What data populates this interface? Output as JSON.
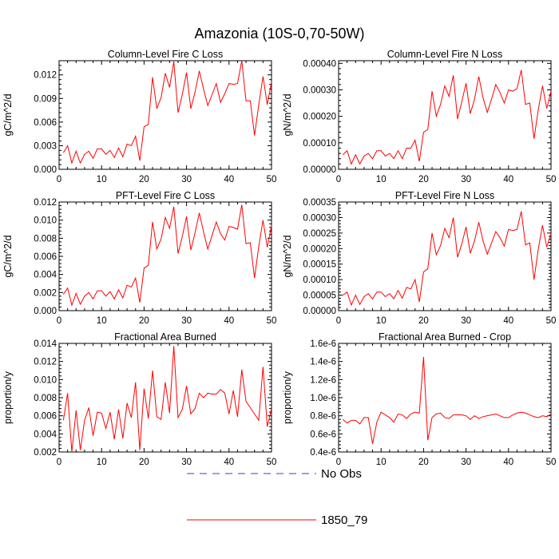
{
  "figure": {
    "title": "Amazonia (10S-0,70-50W)",
    "legend": [
      {
        "label": "No Obs",
        "color": "#3b3bcc",
        "style": "dashed"
      },
      {
        "label": "1850_79",
        "color": "#ff0000",
        "style": "solid"
      }
    ]
  },
  "chart_data": [
    {
      "type": "line",
      "title": "Column-Level Fire C Loss",
      "ylabel": "gC/m^2/d",
      "xlim": [
        0,
        50
      ],
      "ylim": [
        0,
        0.0138
      ],
      "xticks": [
        0,
        10,
        20,
        30,
        40,
        50
      ],
      "yticks": [
        "0.000",
        "0.003",
        "0.006",
        "0.009",
        "0.012"
      ],
      "ytick_values": [
        0,
        0.003,
        0.006,
        0.009,
        0.012
      ],
      "series": [
        {
          "name": "1850_79",
          "color": "#ff0000",
          "values": [
            0.0021,
            0.003,
            0.0008,
            0.0023,
            0.0008,
            0.0019,
            0.0023,
            0.0014,
            0.0026,
            0.0026,
            0.0019,
            0.0024,
            0.0015,
            0.0027,
            0.0016,
            0.0032,
            0.003,
            0.0042,
            0.0011,
            0.0054,
            0.0057,
            0.0117,
            0.0077,
            0.0091,
            0.0122,
            0.0104,
            0.0137,
            0.0072,
            0.0095,
            0.0123,
            0.0077,
            0.0098,
            0.0125,
            0.0102,
            0.0081,
            0.0095,
            0.0109,
            0.0085,
            0.0096,
            0.0109,
            0.0108,
            0.0109,
            0.0138,
            0.0087,
            0.0087,
            0.0043,
            0.0082,
            0.0118,
            0.0082,
            0.0111
          ]
        }
      ]
    },
    {
      "type": "line",
      "title": "Column-Level Fire N Loss",
      "ylabel": "gN/m^2/d",
      "xlim": [
        0,
        50
      ],
      "ylim": [
        0,
        0.00041
      ],
      "xticks": [
        0,
        10,
        20,
        30,
        40,
        50
      ],
      "yticks": [
        "0.00000",
        "0.00010",
        "0.00020",
        "0.00030",
        "0.00040"
      ],
      "ytick_values": [
        0,
        0.0001,
        0.0002,
        0.0003,
        0.0004
      ],
      "series": [
        {
          "name": "1850_79",
          "color": "#ff0000",
          "values": [
            5.5e-05,
            7e-05,
            2e-05,
            5.5e-05,
            2e-05,
            5e-05,
            6e-05,
            4e-05,
            7e-05,
            7e-05,
            5e-05,
            6e-05,
            4e-05,
            7e-05,
            4e-05,
            8e-05,
            8e-05,
            0.00011,
            3e-05,
            0.00014,
            0.00015,
            0.000295,
            0.0002,
            0.000245,
            0.000315,
            0.000275,
            0.000355,
            0.00019,
            0.000255,
            0.000325,
            0.00021,
            0.000265,
            0.00035,
            0.00027,
            0.000215,
            0.000265,
            0.00032,
            0.00029,
            0.00025,
            0.0003,
            0.000295,
            0.000305,
            0.000375,
            0.000245,
            0.00025,
            0.000115,
            0.000225,
            0.000315,
            0.00023,
            0.000295
          ]
        }
      ]
    },
    {
      "type": "line",
      "title": "PFT-Level Fire C Loss",
      "ylabel": "gC/m^2/d",
      "xlim": [
        0,
        50
      ],
      "ylim": [
        0,
        0.012
      ],
      "xticks": [
        0,
        10,
        20,
        30,
        40,
        50
      ],
      "yticks": [
        "0.000",
        "0.002",
        "0.004",
        "0.006",
        "0.008",
        "0.010",
        "0.012"
      ],
      "ytick_values": [
        0,
        0.002,
        0.004,
        0.006,
        0.008,
        0.01,
        0.012
      ],
      "series": [
        {
          "name": "1850_79",
          "color": "#ff0000",
          "values": [
            0.0018,
            0.0025,
            0.0006,
            0.0019,
            0.0007,
            0.0016,
            0.002,
            0.0013,
            0.0022,
            0.0022,
            0.0016,
            0.0021,
            0.0013,
            0.0023,
            0.0014,
            0.0028,
            0.0026,
            0.0036,
            0.0009,
            0.0047,
            0.005,
            0.0098,
            0.0068,
            0.0079,
            0.0103,
            0.0091,
            0.0115,
            0.0063,
            0.0082,
            0.0104,
            0.0067,
            0.0086,
            0.0108,
            0.0087,
            0.0068,
            0.0083,
            0.0098,
            0.0085,
            0.0078,
            0.0093,
            0.0092,
            0.009,
            0.0117,
            0.0074,
            0.0075,
            0.0036,
            0.0071,
            0.01,
            0.007,
            0.0094
          ]
        }
      ]
    },
    {
      "type": "line",
      "title": "PFT-Level Fire N Loss",
      "ylabel": "gN/m^2/d",
      "xlim": [
        0,
        50
      ],
      "ylim": [
        0,
        0.00035
      ],
      "xticks": [
        0,
        10,
        20,
        30,
        40,
        50
      ],
      "yticks": [
        "0.00000",
        "0.00005",
        "0.00010",
        "0.00015",
        "0.00020",
        "0.00025",
        "0.00030",
        "0.00035"
      ],
      "ytick_values": [
        0,
        5e-05,
        0.0001,
        0.00015,
        0.0002,
        0.00025,
        0.0003,
        0.00035
      ],
      "series": [
        {
          "name": "1850_79",
          "color": "#ff0000",
          "values": [
            5e-05,
            6e-05,
            1.8e-05,
            5e-05,
            2e-05,
            4.5e-05,
            5.5e-05,
            3.8e-05,
            6e-05,
            6e-05,
            4.5e-05,
            5.5e-05,
            3.8e-05,
            6.5e-05,
            4e-05,
            7.5e-05,
            7e-05,
            0.0001,
            2.8e-05,
            0.000125,
            0.000135,
            0.00025,
            0.00018,
            0.00021,
            0.000265,
            0.000235,
            0.0003,
            0.000172,
            0.000215,
            0.00027,
            0.000185,
            0.000225,
            0.000285,
            0.000225,
            0.000182,
            0.000218,
            0.000255,
            0.000235,
            0.000208,
            0.000262,
            0.000258,
            0.000262,
            0.00032,
            0.000212,
            0.000218,
            0.0001,
            0.000198,
            0.000275,
            0.000205,
            0.000248
          ]
        }
      ]
    },
    {
      "type": "line",
      "title": "Fractional Area Burned",
      "ylabel": "proportion/y",
      "xlim": [
        0,
        50
      ],
      "ylim": [
        0.002,
        0.014
      ],
      "xticks": [
        0,
        10,
        20,
        30,
        40,
        50
      ],
      "yticks": [
        "0.002",
        "0.004",
        "0.006",
        "0.008",
        "0.010",
        "0.012",
        "0.014"
      ],
      "ytick_values": [
        0.002,
        0.004,
        0.006,
        0.008,
        0.01,
        0.012,
        0.014
      ],
      "series": [
        {
          "name": "1850_79",
          "color": "#ff0000",
          "values": [
            0.0055,
            0.0085,
            0.002,
            0.0066,
            0.0022,
            0.0055,
            0.0069,
            0.0038,
            0.0064,
            0.0063,
            0.0046,
            0.0064,
            0.0034,
            0.0067,
            0.0035,
            0.0074,
            0.0058,
            0.0097,
            0.0022,
            0.009,
            0.0057,
            0.011,
            0.0059,
            0.0056,
            0.0097,
            0.0063,
            0.0137,
            0.0058,
            0.0067,
            0.0093,
            0.0062,
            0.0068,
            0.0085,
            0.008,
            0.0085,
            0.0084,
            0.0084,
            0.0089,
            0.0085,
            0.0062,
            0.0088,
            0.0059,
            0.0111,
            0.0076,
            0.0069,
            0.0062,
            0.0055,
            0.0114,
            0.0048,
            0.0068
          ]
        }
      ]
    },
    {
      "type": "line",
      "title": "Fractional Area Burned - Crop",
      "ylabel": "proportion/y",
      "xlim": [
        0,
        50
      ],
      "ylim": [
        4e-07,
        1.6e-06
      ],
      "xticks": [
        0,
        10,
        20,
        30,
        40,
        50
      ],
      "yticks": [
        "0.4e-6",
        "0.6e-6",
        "0.8e-6",
        "1.0e-6",
        "1.2e-6",
        "1.4e-6",
        "1.6e-6"
      ],
      "ytick_values": [
        4e-07,
        6e-07,
        8e-07,
        1e-06,
        1.2e-06,
        1.4e-06,
        1.6e-06
      ],
      "series": [
        {
          "name": "1850_79",
          "color": "#ff0000",
          "values": [
            7.6e-07,
            7.2e-07,
            7.5e-07,
            7.5e-07,
            7.1e-07,
            7.8e-07,
            7.8e-07,
            4.9e-07,
            7.3e-07,
            8.4e-07,
            8.1e-07,
            7.8e-07,
            7.3e-07,
            8.2e-07,
            8.1e-07,
            7.7e-07,
            8.2e-07,
            8.4e-07,
            8.3e-07,
            1.45e-06,
            5.3e-07,
            7.8e-07,
            8.2e-07,
            8.3e-07,
            7.8e-07,
            7.7e-07,
            8.1e-07,
            8.1e-07,
            8.1e-07,
            8e-07,
            7.6e-07,
            8e-07,
            7.7e-07,
            7.9e-07,
            8e-07,
            8.1e-07,
            8.2e-07,
            8e-07,
            7.8e-07,
            7.8e-07,
            8.1e-07,
            8.3e-07,
            8.4e-07,
            8.3e-07,
            8.1e-07,
            7.9e-07,
            7.8e-07,
            8e-07,
            7.9e-07,
            8.2e-07
          ]
        }
      ]
    }
  ]
}
